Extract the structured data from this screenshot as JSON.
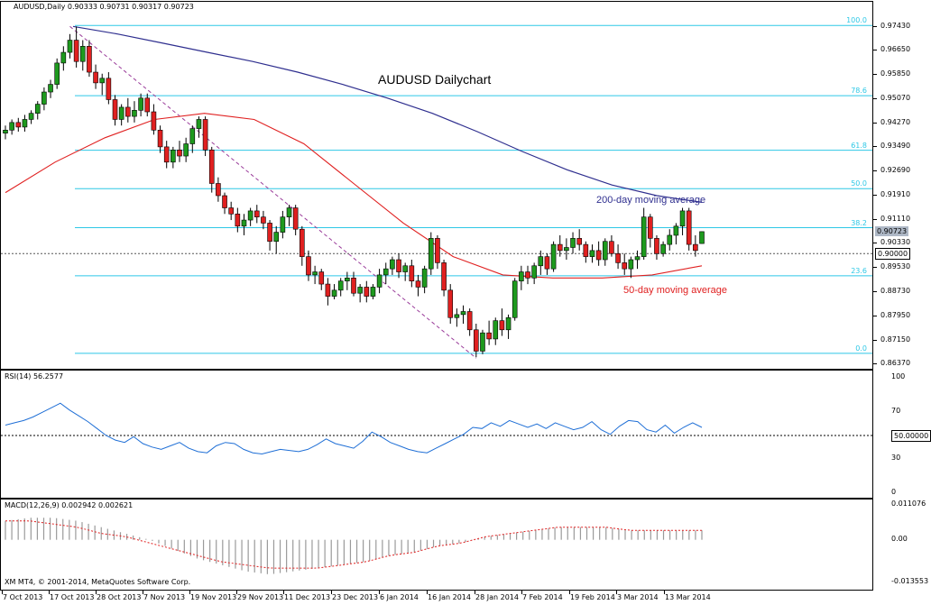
{
  "window": {
    "symbol_header": "AUDUSD,Daily  0.90333 0.90731 0.90317 0.90723",
    "copyright": "XM MT4, © 2001-2014, MetaQuotes Software Corp."
  },
  "main_chart": {
    "title": "AUDUSD Dailychart",
    "annotation_200": "200-day moving average",
    "annotation_50": "50-day moving average",
    "price_axis": [
      "0.97430",
      "0.96650",
      "0.95850",
      "0.95070",
      "0.94270",
      "0.93490",
      "0.92690",
      "0.91910",
      "0.91110",
      "0.90330",
      "0.89530",
      "0.88730",
      "0.87950",
      "0.87150",
      "0.86370"
    ],
    "current_price": "0.90723",
    "level_marker": "0.90000",
    "fib_levels": [
      {
        "label": "100.0",
        "price": 0.9748
      },
      {
        "label": "78.6",
        "price": 0.9518
      },
      {
        "label": "61.8",
        "price": 0.9339
      },
      {
        "label": "50.0",
        "price": 0.9213
      },
      {
        "label": "38.2",
        "price": 0.9085
      },
      {
        "label": "23.6",
        "price": 0.8927
      },
      {
        "label": "0.0",
        "price": 0.8673
      }
    ],
    "colors": {
      "bull": "#1e9a1e",
      "bear": "#e02020",
      "fib": "#2ec8e6",
      "ma200": "#2f2f8f",
      "ma50": "#e02020",
      "trend": "#9a3c9a"
    }
  },
  "rsi": {
    "header": "RSI(14) 56.2577",
    "axis": [
      "100",
      "70",
      "50.0000",
      "30",
      "0"
    ],
    "value_label": "50.00000",
    "color": "#1f6fd6"
  },
  "macd": {
    "header": "MACD(12,26,9) 0.002942 0.002621",
    "axis": [
      "0.011076",
      "0.00",
      "-0.013553"
    ]
  },
  "time_axis": [
    "7 Oct 2013",
    "17 Oct 2013",
    "28 Oct 2013",
    "7 Nov 2013",
    "19 Nov 2013",
    "29 Nov 2013",
    "11 Dec 2013",
    "23 Dec 2013",
    "6 Jan 2014",
    "16 Jan 2014",
    "28 Jan 2014",
    "7 Feb 2014",
    "19 Feb 2014",
    "3 Mar 2014",
    "13 Mar 2014"
  ],
  "chart_data": {
    "type": "candlestick",
    "title": "AUDUSD Dailychart",
    "ylim": [
      0.8637,
      0.977
    ],
    "candles_ohlc": [
      [
        0.9395,
        0.942,
        0.9375,
        0.9405
      ],
      [
        0.9405,
        0.944,
        0.939,
        0.943
      ],
      [
        0.943,
        0.9445,
        0.94,
        0.9415
      ],
      [
        0.9415,
        0.9455,
        0.94,
        0.944
      ],
      [
        0.944,
        0.947,
        0.9425,
        0.946
      ],
      [
        0.946,
        0.95,
        0.944,
        0.949
      ],
      [
        0.949,
        0.9545,
        0.947,
        0.953
      ],
      [
        0.953,
        0.957,
        0.951,
        0.9555
      ],
      [
        0.9555,
        0.964,
        0.954,
        0.9625
      ],
      [
        0.9625,
        0.968,
        0.96,
        0.966
      ],
      [
        0.966,
        0.972,
        0.964,
        0.97
      ],
      [
        0.97,
        0.9745,
        0.961,
        0.963
      ],
      [
        0.963,
        0.97,
        0.96,
        0.968
      ],
      [
        0.968,
        0.97,
        0.958,
        0.9595
      ],
      [
        0.9595,
        0.962,
        0.954,
        0.956
      ],
      [
        0.956,
        0.959,
        0.952,
        0.9575
      ],
      [
        0.9575,
        0.9595,
        0.949,
        0.9505
      ],
      [
        0.9505,
        0.952,
        0.942,
        0.944
      ],
      [
        0.944,
        0.949,
        0.942,
        0.948
      ],
      [
        0.948,
        0.951,
        0.943,
        0.945
      ],
      [
        0.945,
        0.95,
        0.943,
        0.947
      ],
      [
        0.947,
        0.9525,
        0.945,
        0.951
      ],
      [
        0.951,
        0.9525,
        0.945,
        0.9465
      ],
      [
        0.9465,
        0.949,
        0.939,
        0.9405
      ],
      [
        0.9405,
        0.942,
        0.933,
        0.935
      ],
      [
        0.935,
        0.937,
        0.928,
        0.93
      ],
      [
        0.93,
        0.935,
        0.928,
        0.934
      ],
      [
        0.934,
        0.937,
        0.93,
        0.932
      ],
      [
        0.932,
        0.938,
        0.93,
        0.936
      ],
      [
        0.936,
        0.942,
        0.933,
        0.941
      ],
      [
        0.941,
        0.945,
        0.938,
        0.944
      ],
      [
        0.944,
        0.945,
        0.932,
        0.934
      ],
      [
        0.934,
        0.935,
        0.92,
        0.923
      ],
      [
        0.923,
        0.925,
        0.917,
        0.919
      ],
      [
        0.919,
        0.92,
        0.913,
        0.915
      ],
      [
        0.915,
        0.917,
        0.911,
        0.913
      ],
      [
        0.913,
        0.915,
        0.907,
        0.909
      ],
      [
        0.909,
        0.913,
        0.906,
        0.911
      ],
      [
        0.911,
        0.915,
        0.909,
        0.914
      ],
      [
        0.914,
        0.916,
        0.91,
        0.912
      ],
      [
        0.912,
        0.914,
        0.908,
        0.91
      ],
      [
        0.91,
        0.911,
        0.901,
        0.904
      ],
      [
        0.904,
        0.909,
        0.9,
        0.907
      ],
      [
        0.907,
        0.914,
        0.905,
        0.912
      ],
      [
        0.912,
        0.916,
        0.909,
        0.915
      ],
      [
        0.915,
        0.916,
        0.906,
        0.908
      ],
      [
        0.908,
        0.909,
        0.896,
        0.899
      ],
      [
        0.899,
        0.901,
        0.891,
        0.893
      ],
      [
        0.893,
        0.896,
        0.89,
        0.894
      ],
      [
        0.894,
        0.895,
        0.888,
        0.89
      ],
      [
        0.89,
        0.892,
        0.883,
        0.886
      ],
      [
        0.886,
        0.89,
        0.885,
        0.888
      ],
      [
        0.888,
        0.892,
        0.886,
        0.891
      ],
      [
        0.891,
        0.894,
        0.888,
        0.892
      ],
      [
        0.892,
        0.894,
        0.886,
        0.887
      ],
      [
        0.887,
        0.89,
        0.884,
        0.889
      ],
      [
        0.889,
        0.891,
        0.884,
        0.886
      ],
      [
        0.886,
        0.89,
        0.885,
        0.889
      ],
      [
        0.889,
        0.895,
        0.887,
        0.893
      ],
      [
        0.893,
        0.897,
        0.89,
        0.895
      ],
      [
        0.895,
        0.899,
        0.893,
        0.898
      ],
      [
        0.898,
        0.9,
        0.892,
        0.894
      ],
      [
        0.894,
        0.897,
        0.891,
        0.896
      ],
      [
        0.896,
        0.898,
        0.889,
        0.891
      ],
      [
        0.891,
        0.893,
        0.886,
        0.889
      ],
      [
        0.889,
        0.896,
        0.887,
        0.895
      ],
      [
        0.895,
        0.907,
        0.893,
        0.905
      ],
      [
        0.905,
        0.906,
        0.895,
        0.897
      ],
      [
        0.897,
        0.898,
        0.886,
        0.888
      ],
      [
        0.888,
        0.89,
        0.877,
        0.879
      ],
      [
        0.879,
        0.882,
        0.876,
        0.88
      ],
      [
        0.88,
        0.883,
        0.877,
        0.881
      ],
      [
        0.881,
        0.882,
        0.873,
        0.875
      ],
      [
        0.875,
        0.877,
        0.866,
        0.868
      ],
      [
        0.868,
        0.875,
        0.867,
        0.874
      ],
      [
        0.874,
        0.878,
        0.87,
        0.872
      ],
      [
        0.872,
        0.879,
        0.87,
        0.878
      ],
      [
        0.878,
        0.882,
        0.873,
        0.875
      ],
      [
        0.875,
        0.88,
        0.872,
        0.879
      ],
      [
        0.879,
        0.892,
        0.878,
        0.891
      ],
      [
        0.891,
        0.896,
        0.888,
        0.894
      ],
      [
        0.894,
        0.896,
        0.89,
        0.892
      ],
      [
        0.892,
        0.897,
        0.89,
        0.896
      ],
      [
        0.896,
        0.901,
        0.893,
        0.899
      ],
      [
        0.899,
        0.9,
        0.893,
        0.895
      ],
      [
        0.895,
        0.904,
        0.894,
        0.903
      ],
      [
        0.903,
        0.906,
        0.899,
        0.901
      ],
      [
        0.901,
        0.905,
        0.898,
        0.902
      ],
      [
        0.902,
        0.907,
        0.9,
        0.905
      ],
      [
        0.905,
        0.908,
        0.901,
        0.903
      ],
      [
        0.903,
        0.904,
        0.897,
        0.899
      ],
      [
        0.899,
        0.903,
        0.897,
        0.901
      ],
      [
        0.901,
        0.904,
        0.896,
        0.898
      ],
      [
        0.898,
        0.905,
        0.896,
        0.904
      ],
      [
        0.904,
        0.906,
        0.899,
        0.9
      ],
      [
        0.9,
        0.903,
        0.895,
        0.897
      ],
      [
        0.897,
        0.9,
        0.893,
        0.895
      ],
      [
        0.895,
        0.899,
        0.892,
        0.898
      ],
      [
        0.898,
        0.901,
        0.895,
        0.899
      ],
      [
        0.899,
        0.915,
        0.898,
        0.912
      ],
      [
        0.912,
        0.913,
        0.902,
        0.905
      ],
      [
        0.905,
        0.906,
        0.898,
        0.9
      ],
      [
        0.9,
        0.904,
        0.899,
        0.903
      ],
      [
        0.903,
        0.908,
        0.901,
        0.906
      ],
      [
        0.906,
        0.91,
        0.903,
        0.909
      ],
      [
        0.909,
        0.915,
        0.906,
        0.914
      ],
      [
        0.914,
        0.915,
        0.901,
        0.903
      ],
      [
        0.903,
        0.906,
        0.899,
        0.901
      ],
      [
        0.9033,
        0.9073,
        0.9032,
        0.9072
      ]
    ],
    "ma200": [
      0.9745,
      0.972,
      0.969,
      0.966,
      0.963,
      0.9595,
      0.9555,
      0.951,
      0.946,
      0.94,
      0.9335,
      0.9275,
      0.9225,
      0.919,
      0.9168
    ],
    "ma50": [
      0.92,
      0.93,
      0.938,
      0.944,
      0.946,
      0.944,
      0.936,
      0.923,
      0.91,
      0.899,
      0.893,
      0.892,
      0.892,
      0.893,
      0.896
    ],
    "rsi_values": [
      59,
      61,
      63,
      66,
      70,
      74,
      78,
      72,
      67,
      62,
      56,
      50,
      46,
      44,
      49,
      43,
      40,
      38,
      41,
      44,
      39,
      36,
      35,
      41,
      44,
      43,
      38,
      35,
      34,
      36,
      38,
      37,
      36,
      38,
      42,
      47,
      43,
      41,
      39,
      45,
      53,
      49,
      44,
      41,
      38,
      36,
      35,
      39,
      43,
      47,
      51,
      57,
      56,
      61,
      58,
      63,
      60,
      57,
      60,
      56,
      61,
      58,
      55,
      57,
      62,
      55,
      51,
      58,
      63,
      62,
      55,
      53,
      59,
      52,
      57,
      61,
      57
    ],
    "macd_hist_sample": [
      0.006,
      0.007,
      0.007,
      0.006,
      0.004,
      0.002,
      0.0,
      -0.003,
      -0.006,
      -0.008,
      -0.01,
      -0.011,
      -0.01,
      -0.009,
      -0.008,
      -0.007,
      -0.005,
      -0.004,
      -0.002,
      -0.001,
      0.001,
      0.002,
      0.003,
      0.004,
      0.004,
      0.004,
      0.003,
      0.003,
      0.003,
      0.003
    ],
    "macd_signal_sample": [
      0.006,
      0.006,
      0.005,
      0.004,
      0.002,
      0.001,
      -0.001,
      -0.003,
      -0.005,
      -0.007,
      -0.008,
      -0.009,
      -0.009,
      -0.009,
      -0.008,
      -0.007,
      -0.005,
      -0.004,
      -0.002,
      -0.001,
      0.001,
      0.002,
      0.003,
      0.004,
      0.004,
      0.004,
      0.003,
      0.003,
      0.003,
      0.003
    ]
  }
}
